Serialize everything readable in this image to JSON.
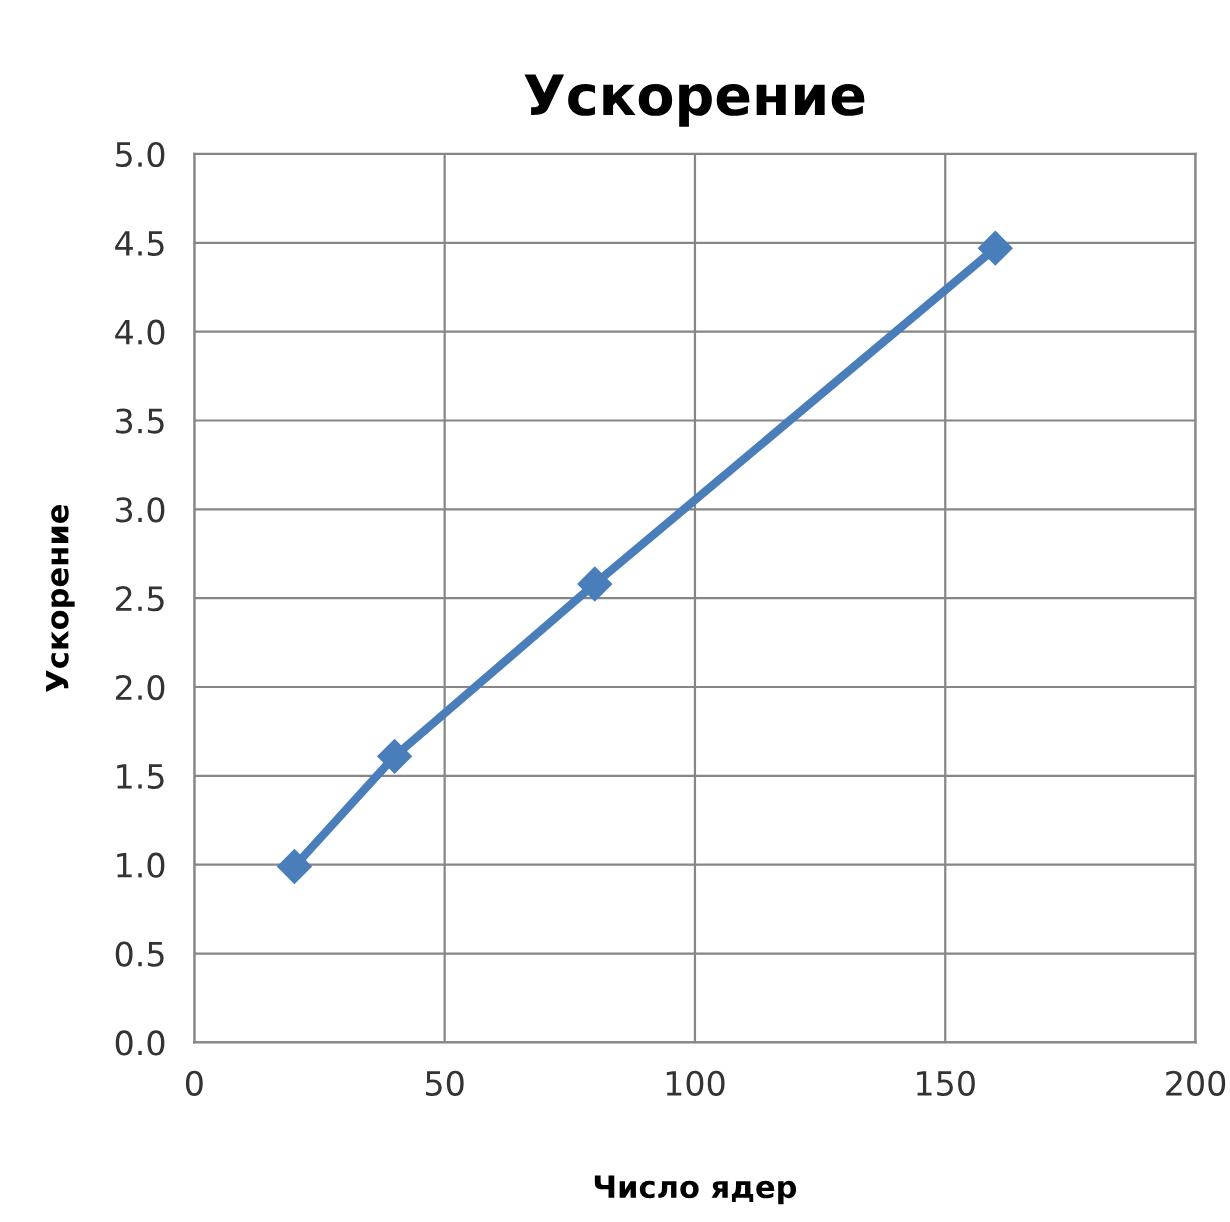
{
  "chart_data": {
    "type": "line",
    "title": "Ускорение",
    "xlabel": "Число ядер",
    "ylabel": "Ускорение",
    "x": [
      20,
      40,
      80,
      160
    ],
    "series": [
      {
        "color": "#4a7ebb",
        "values": [
          0.99,
          1.61,
          2.58,
          4.47
        ]
      }
    ],
    "xlim": [
      0,
      200
    ],
    "xticks": [
      0,
      50,
      100,
      150,
      200
    ],
    "ylim": [
      0,
      5
    ],
    "yticks": [
      {
        "value": 0,
        "label": "0.0"
      },
      {
        "value": 0.5,
        "label": "0.5"
      },
      {
        "value": 1,
        "label": "1.0"
      },
      {
        "value": 1.5,
        "label": "1.5"
      },
      {
        "value": 2,
        "label": "2.0"
      },
      {
        "value": 2.5,
        "label": "2.5"
      },
      {
        "value": 3,
        "label": "3.0"
      },
      {
        "value": 3.5,
        "label": "3.5"
      },
      {
        "value": 4,
        "label": "4.0"
      },
      {
        "value": 4.5,
        "label": "4.5"
      },
      {
        "value": 5,
        "label": "5.0"
      }
    ],
    "grid": true,
    "marker": "diamond",
    "line_style": "solid"
  }
}
